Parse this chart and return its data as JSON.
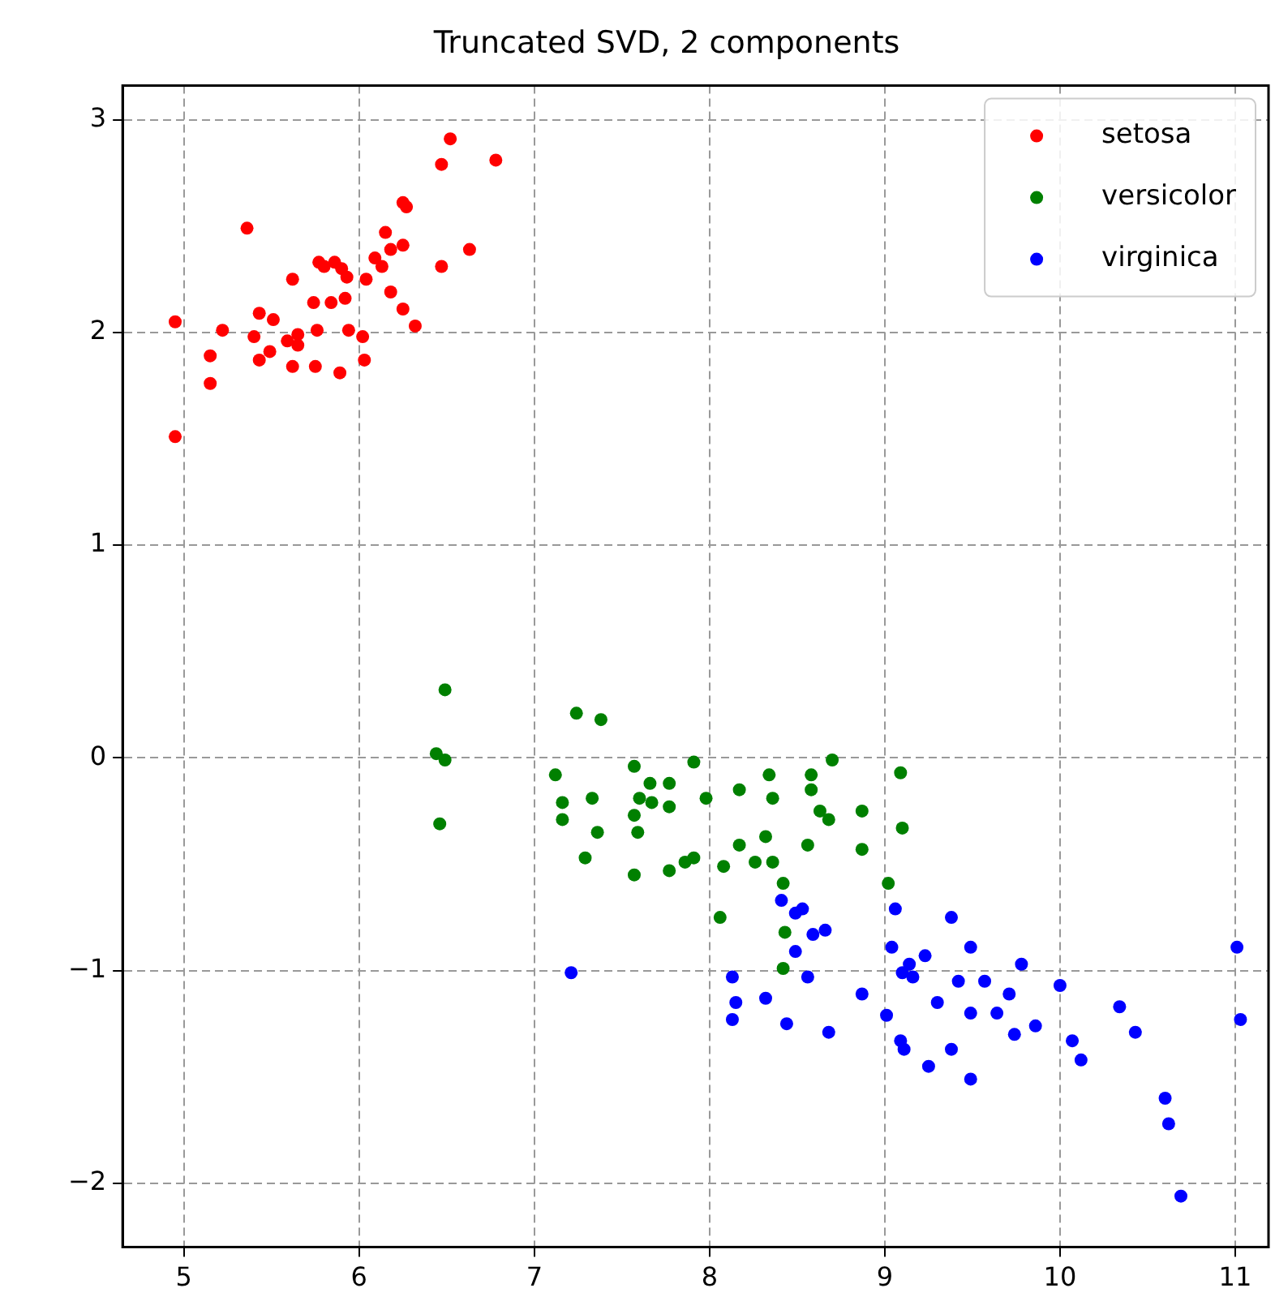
{
  "chart_data": {
    "type": "scatter",
    "title": "Truncated SVD, 2 components",
    "xlim": [
      4.65,
      11.19
    ],
    "ylim": [
      -2.3,
      3.16
    ],
    "xticks": [
      5,
      6,
      7,
      8,
      9,
      10,
      11
    ],
    "yticks": [
      -2,
      -1,
      0,
      1,
      2,
      3
    ],
    "grid": true,
    "legend": "top right",
    "marker": "circle",
    "series": [
      {
        "name": "setosa",
        "color": "#ff0000",
        "x": [
          6.52,
          6.47,
          6.78,
          6.25,
          6.27,
          5.36,
          6.15,
          6.25,
          6.18,
          6.63,
          5.77,
          5.86,
          5.8,
          5.9,
          5.93,
          6.09,
          6.13,
          6.04,
          6.47,
          5.62,
          6.18,
          5.74,
          5.84,
          5.92,
          6.25,
          6.32,
          5.43,
          5.51,
          4.95,
          5.22,
          5.4,
          5.65,
          5.76,
          5.94,
          6.02,
          5.59,
          5.49,
          5.65,
          5.15,
          5.43,
          5.6,
          5.62,
          5.75,
          5.89,
          6.03,
          5.15,
          4.95
        ],
        "values": [
          2.91,
          2.79,
          2.81,
          2.61,
          2.59,
          2.49,
          2.47,
          2.41,
          2.39,
          2.39,
          2.33,
          2.33,
          2.31,
          2.3,
          2.26,
          2.35,
          2.31,
          2.25,
          2.31,
          2.25,
          2.19,
          2.14,
          2.14,
          2.16,
          2.11,
          2.03,
          2.09,
          2.06,
          2.05,
          2.01,
          1.98,
          1.99,
          2.01,
          2.01,
          1.98,
          1.96,
          1.91,
          1.94,
          1.89,
          1.87,
          null,
          1.84,
          1.84,
          1.81,
          1.87,
          1.76,
          1.51
        ]
      },
      {
        "name": "versicolor",
        "color": "#008000",
        "x": [
          6.49,
          7.24,
          7.38,
          6.44,
          6.49,
          6.46,
          7.12,
          7.57,
          7.91,
          7.66,
          7.77,
          7.6,
          7.67,
          7.77,
          7.16,
          7.33,
          7.16,
          7.57,
          7.59,
          7.36,
          7.29,
          7.57,
          7.77,
          7.86,
          7.91,
          7.98,
          8.17,
          8.34,
          8.36,
          8.58,
          8.58,
          8.7,
          8.63,
          8.68,
          8.87,
          8.87,
          9.09,
          9.1,
          8.17,
          8.32,
          8.56,
          8.08,
          8.26,
          8.36,
          8.42,
          8.06,
          8.43,
          8.42,
          9.02
        ],
        "values": [
          0.32,
          0.21,
          0.18,
          0.02,
          -0.01,
          -0.31,
          -0.08,
          -0.04,
          -0.02,
          -0.12,
          -0.12,
          -0.19,
          -0.21,
          -0.23,
          -0.21,
          -0.19,
          -0.29,
          -0.27,
          -0.35,
          -0.35,
          -0.47,
          -0.55,
          -0.53,
          -0.49,
          -0.47,
          -0.19,
          -0.15,
          -0.08,
          -0.19,
          -0.08,
          -0.15,
          -0.01,
          -0.25,
          -0.29,
          -0.25,
          -0.43,
          -0.07,
          -0.33,
          -0.41,
          -0.37,
          -0.41,
          -0.51,
          -0.49,
          -0.49,
          -0.59,
          -0.75,
          -0.82,
          -0.99,
          -0.59
        ]
      },
      {
        "name": "virginica",
        "color": "#0000ff",
        "x": [
          8.41,
          8.49,
          8.53,
          8.59,
          8.66,
          8.49,
          8.13,
          8.56,
          8.15,
          8.13,
          8.32,
          8.44,
          8.68,
          8.87,
          9.06,
          9.38,
          9.04,
          9.49,
          9.23,
          9.14,
          9.1,
          9.16,
          9.78,
          9.42,
          9.57,
          10.0,
          9.3,
          9.71,
          9.49,
          9.64,
          9.01,
          9.86,
          9.74,
          9.09,
          9.11,
          9.38,
          9.25,
          9.49,
          10.34,
          10.43,
          10.07,
          10.12,
          10.6,
          10.62,
          10.69,
          11.01,
          11.03,
          7.21
        ],
        "values": [
          -0.67,
          -0.73,
          -0.71,
          -0.83,
          -0.81,
          -0.91,
          -1.03,
          -1.03,
          -1.15,
          -1.23,
          -1.13,
          -1.25,
          -1.29,
          -1.11,
          -0.71,
          -0.75,
          -0.89,
          -0.89,
          -0.93,
          -0.97,
          -1.01,
          -1.03,
          -0.97,
          -1.05,
          -1.05,
          -1.07,
          -1.15,
          -1.11,
          -1.2,
          -1.2,
          -1.21,
          -1.26,
          -1.3,
          -1.33,
          -1.37,
          -1.37,
          -1.45,
          -1.51,
          -1.17,
          -1.29,
          -1.33,
          -1.42,
          -1.6,
          -1.72,
          -2.06,
          -0.89,
          -1.23,
          -1.01
        ]
      }
    ]
  }
}
